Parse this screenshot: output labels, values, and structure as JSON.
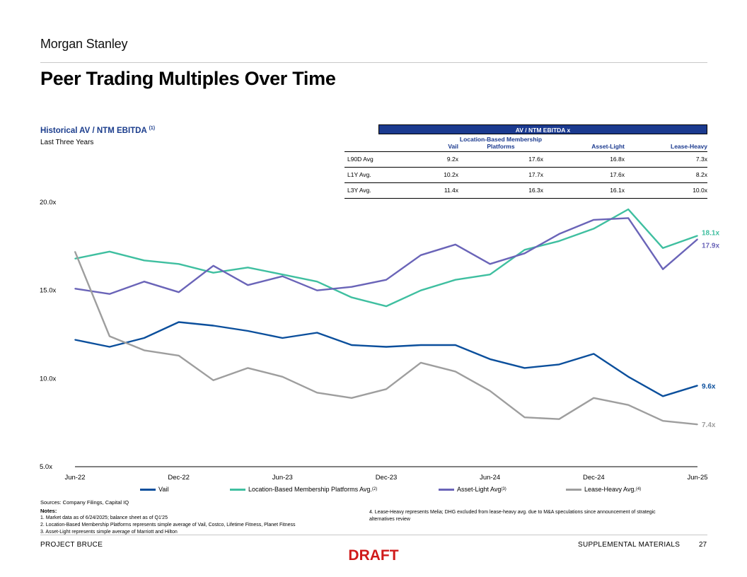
{
  "brand": "Morgan Stanley",
  "page_title": "Peer Trading Multiples Over Time",
  "chart_title": "Historical AV / NTM EBITDA",
  "chart_title_note": "(1)",
  "chart_subtitle": "Last Three Years",
  "table": {
    "header": "AV / NTM EBITDA x",
    "columns": [
      "",
      "Vail",
      "Location-Based Membership Platforms",
      "Asset-Light",
      "Lease-Heavy"
    ],
    "rows": [
      [
        "L90D Avg",
        "9.2x",
        "17.6x",
        "16.8x",
        "7.3x"
      ],
      [
        "L1Y Avg.",
        "10.2x",
        "17.7x",
        "17.6x",
        "8.2x"
      ],
      [
        "L3Y Avg.",
        "11.4x",
        "16.3x",
        "16.1x",
        "10.0x"
      ]
    ]
  },
  "chart_data": {
    "type": "line",
    "x": [
      "Jun-22",
      "Aug-22",
      "Oct-22",
      "Dec-22",
      "Feb-23",
      "Apr-23",
      "Jun-23",
      "Aug-23",
      "Oct-23",
      "Dec-23",
      "Feb-24",
      "Apr-24",
      "Jun-24",
      "Aug-24",
      "Oct-24",
      "Dec-24",
      "Feb-25",
      "Apr-25",
      "Jun-25"
    ],
    "x_tick_labels": [
      "Jun-22",
      "Dec-22",
      "Jun-23",
      "Dec-23",
      "Jun-24",
      "Dec-24",
      "Jun-25"
    ],
    "y_tick_labels": [
      "5.0x",
      "10.0x",
      "15.0x",
      "20.0x"
    ],
    "ylim": [
      5,
      20
    ],
    "grid": false,
    "legend_position": "bottom",
    "series": [
      {
        "name": "Vail",
        "color": "#0b4f9c",
        "end_label": "9.6x",
        "values": [
          12.2,
          11.8,
          12.3,
          13.2,
          13.0,
          12.7,
          12.3,
          12.6,
          11.9,
          11.8,
          11.9,
          11.9,
          11.1,
          10.6,
          10.8,
          11.4,
          10.1,
          9.0,
          9.6
        ]
      },
      {
        "name": "Location-Based Membership Platforms Avg.",
        "note": "(2)",
        "color": "#3fbfa0",
        "end_label": "18.1x",
        "values": [
          16.8,
          17.2,
          16.7,
          16.5,
          16.0,
          16.3,
          15.9,
          15.5,
          14.6,
          14.1,
          15.0,
          15.6,
          15.9,
          17.3,
          17.8,
          18.5,
          19.6,
          17.4,
          18.1
        ]
      },
      {
        "name": "Asset-Light Avg",
        "note": "(3)",
        "color": "#6a64b8",
        "end_label": "17.9x",
        "values": [
          15.1,
          14.8,
          15.5,
          14.9,
          16.4,
          15.3,
          15.8,
          15.0,
          15.2,
          15.6,
          17.0,
          17.6,
          16.5,
          17.1,
          18.2,
          19.0,
          19.1,
          16.2,
          17.9
        ]
      },
      {
        "name": "Lease-Heavy Avg.",
        "note": "(4)",
        "color": "#9e9e9e",
        "end_label": "7.4x",
        "values": [
          17.2,
          12.4,
          11.6,
          11.3,
          9.9,
          10.6,
          10.1,
          9.2,
          8.9,
          9.4,
          10.9,
          10.4,
          9.3,
          7.8,
          7.7,
          8.9,
          8.5,
          7.6,
          7.4
        ]
      }
    ]
  },
  "sources": "Sources: Company Filings, Capital IQ",
  "notes_head": "Notes:",
  "notes": [
    "1.  Market data as of 6/24/2025; balance sheet as of Q1'25",
    "2.  Location-Based Membership Platforms represents simple average of Vail, Costco, Lifetime Fitness, Planet Fitness",
    "3.  Asset-Light represents simple average of Marriott and Hilton"
  ],
  "notes_right": "4.  Lease-Heavy represents Melia; DHG excluded from lease-heavy avg. due to M&A speculations since announcement of strategic alternatives review",
  "footer": {
    "left": "PROJECT BRUCE",
    "right": "SUPPLEMENTAL MATERIALS",
    "page": "27"
  },
  "draft_label": "DRAFT"
}
